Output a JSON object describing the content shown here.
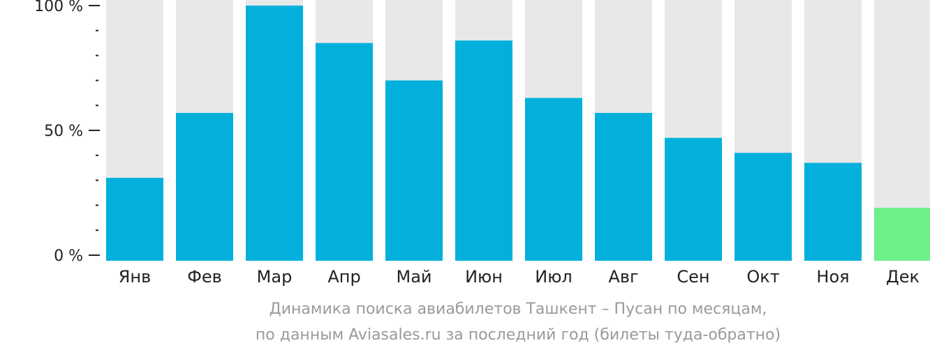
{
  "chart_data": {
    "type": "bar",
    "categories": [
      "Янв",
      "Фев",
      "Мар",
      "Апр",
      "Май",
      "Июн",
      "Июл",
      "Авг",
      "Сен",
      "Окт",
      "Ноя",
      "Дек"
    ],
    "values": [
      31,
      57,
      100,
      85,
      70,
      86,
      63,
      57,
      47,
      41,
      37,
      19
    ],
    "ylim": [
      0,
      100
    ],
    "y_ticks": [
      {
        "value": 0,
        "label": "0 %"
      },
      {
        "value": 50,
        "label": "50 %"
      },
      {
        "value": 100,
        "label": "100 %"
      }
    ],
    "y_minor_tick_step": 10,
    "colors": {
      "bar": "#03b0dc",
      "bar_highlight": "#6ef08a",
      "background_bar": "#e8e8e8",
      "axis": "#222222"
    },
    "highlight_index": 11,
    "caption": [
      "Динамика поиска авиабилетов Ташкент – Пусан по месяцам,",
      "по данным Aviasales.ru за последний год (билеты туда-обратно)"
    ]
  }
}
